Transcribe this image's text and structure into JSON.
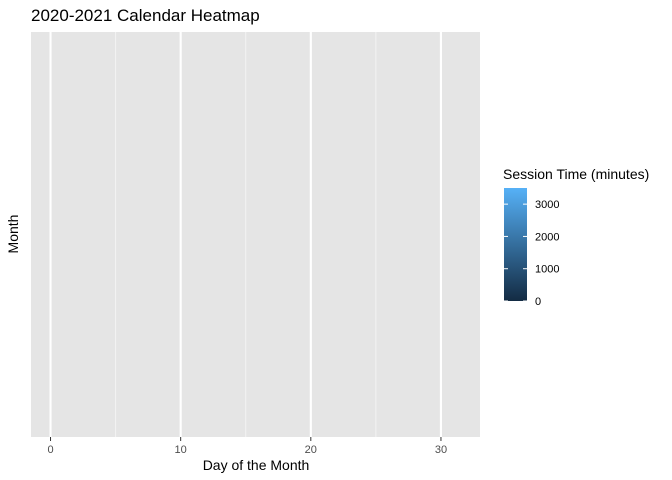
{
  "chart_data": {
    "type": "heatmap",
    "title": "2020-2021 Calendar Heatmap",
    "xlabel": "Day of the Month",
    "ylabel": "Month",
    "xlim": [
      -1.5,
      33
    ],
    "x_ticks": [
      0,
      10,
      20,
      30
    ],
    "x_minor_ticks": [
      5,
      15,
      25
    ],
    "grid": true,
    "values": [],
    "legend": {
      "title": "Session Time (minutes)",
      "placement": "right",
      "range": [
        0,
        3500
      ],
      "ticks": [
        0,
        1000,
        2000,
        3000
      ],
      "low_color": "#132B43",
      "high_color": "#56B1F7"
    }
  },
  "colors": {
    "panel_background": "#e5e5e5",
    "grid_major": "#ffffff",
    "grid_minor": "#f2f2f2"
  }
}
